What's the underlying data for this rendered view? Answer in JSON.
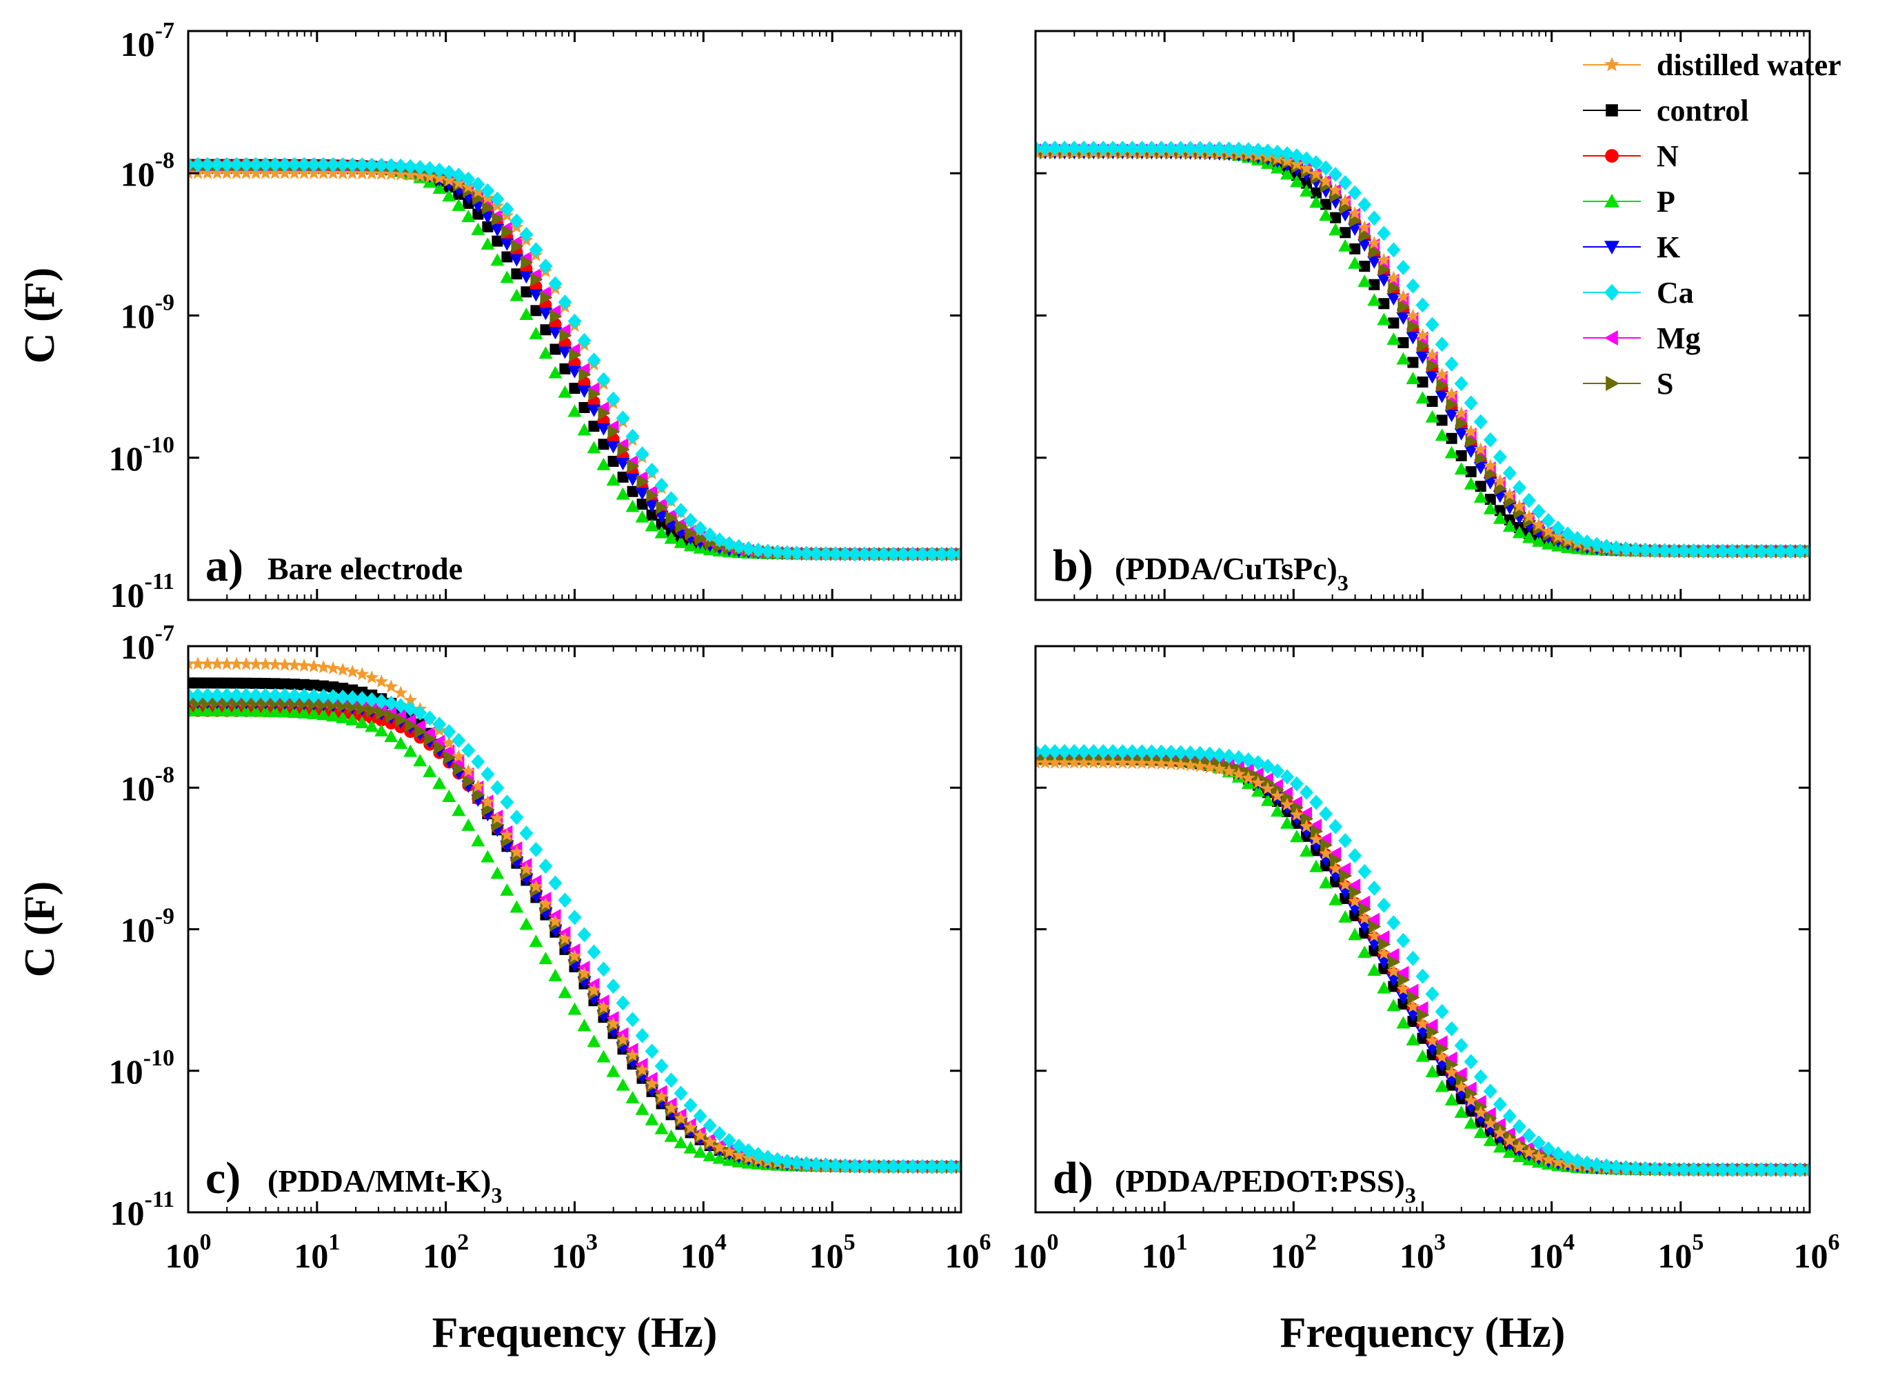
{
  "chart_data": {
    "type": "scatter",
    "layout": "2x2 grid",
    "xlabel": "Frequency (Hz)",
    "ylabel": "C (F)",
    "xscale": "log",
    "yscale": "log",
    "xlim": [
      1,
      1000000
    ],
    "ylim": [
      1e-11,
      1e-07
    ],
    "x_tick_labels": [
      "10^0",
      "10^1",
      "10^2",
      "10^3",
      "10^4",
      "10^5",
      "10^6"
    ],
    "y_tick_labels": [
      "10^-11",
      "10^-10",
      "10^-9",
      "10^-8",
      "10^-7"
    ],
    "legend_placement": "top-right of panel b",
    "series": [
      {
        "name": "distilled water",
        "color": "#f39a2e",
        "marker": "star"
      },
      {
        "name": "control",
        "color": "#000000",
        "marker": "square"
      },
      {
        "name": "N",
        "color": "#ff0000",
        "marker": "circle"
      },
      {
        "name": "P",
        "color": "#00e000",
        "marker": "triangle-up"
      },
      {
        "name": "K",
        "color": "#0000ff",
        "marker": "triangle-down"
      },
      {
        "name": "Ca",
        "color": "#00e5ee",
        "marker": "diamond"
      },
      {
        "name": "Mg",
        "color": "#ff00ff",
        "marker": "triangle-left"
      },
      {
        "name": "S",
        "color": "#6b6b00",
        "marker": "triangle-right"
      }
    ],
    "panels": [
      {
        "letter": "a)",
        "label": "Bare electrode",
        "label_sub": "",
        "curve_params": {
          "C_low": 1.1e-08,
          "C_high": 2.1e-11,
          "f_c": 180,
          "slope": 1.0
        },
        "series_offsets": {
          "distilled water": {
            "C_low": 1e-08,
            "f_c": 300
          },
          "control": {
            "C_low": 1.15e-08,
            "f_c": 160
          },
          "N": {
            "C_low": 1.15e-08,
            "f_c": 200
          },
          "P": {
            "C_low": 1.15e-08,
            "f_c": 130
          },
          "K": {
            "C_low": 1.1e-08,
            "f_c": 190
          },
          "Ca": {
            "C_low": 1.15e-08,
            "f_c": 290
          },
          "Mg": {
            "C_low": 1.1e-08,
            "f_c": 230
          },
          "S": {
            "C_low": 1.1e-08,
            "f_c": 220
          }
        }
      },
      {
        "letter": "b)",
        "label": "(PDDA/CuTsPc)",
        "label_sub": "3",
        "curve_params": {
          "C_low": 1.4e-08,
          "C_high": 2.2e-11,
          "f_c": 200,
          "slope": 1.0
        },
        "series_offsets": {
          "distilled water": {
            "C_low": 1.4e-08,
            "f_c": 230
          },
          "control": {
            "C_low": 1.45e-08,
            "f_c": 150
          },
          "N": {
            "C_low": 1.45e-08,
            "f_c": 200
          },
          "P": {
            "C_low": 1.45e-08,
            "f_c": 130
          },
          "K": {
            "C_low": 1.4e-08,
            "f_c": 190
          },
          "Ca": {
            "C_low": 1.5e-08,
            "f_c": 290
          },
          "Mg": {
            "C_low": 1.45e-08,
            "f_c": 220
          },
          "S": {
            "C_low": 1.4e-08,
            "f_c": 210
          }
        }
      },
      {
        "letter": "c)",
        "label": "(PDDA/MMt-K)",
        "label_sub": "3",
        "curve_params": {
          "C_low": 4e-08,
          "C_high": 2.1e-11,
          "f_c": 70,
          "slope": 0.85
        },
        "series_offsets": {
          "distilled water": {
            "C_low": 7.5e-08,
            "f_c": 60
          },
          "control": {
            "C_low": 5.5e-08,
            "f_c": 65
          },
          "N": {
            "C_low": 3.5e-08,
            "f_c": 90
          },
          "P": {
            "C_low": 3.5e-08,
            "f_c": 55
          },
          "K": {
            "C_low": 4e-08,
            "f_c": 80
          },
          "Ca": {
            "C_low": 4.5e-08,
            "f_c": 120
          },
          "Mg": {
            "C_low": 4.2e-08,
            "f_c": 90
          },
          "S": {
            "C_low": 4e-08,
            "f_c": 85
          }
        }
      },
      {
        "letter": "d)",
        "label": "(PDDA/PEDOT:PSS)",
        "label_sub": "3",
        "curve_params": {
          "C_low": 1.6e-08,
          "C_high": 2e-11,
          "f_c": 80,
          "slope": 0.9
        },
        "series_offsets": {
          "distilled water": {
            "C_low": 1.5e-08,
            "f_c": 90
          },
          "control": {
            "C_low": 1.6e-08,
            "f_c": 75
          },
          "N": {
            "C_low": 1.6e-08,
            "f_c": 85
          },
          "P": {
            "C_low": 1.7e-08,
            "f_c": 60
          },
          "K": {
            "C_low": 1.6e-08,
            "f_c": 80
          },
          "Ca": {
            "C_low": 1.8e-08,
            "f_c": 130
          },
          "Mg": {
            "C_low": 1.65e-08,
            "f_c": 100
          },
          "S": {
            "C_low": 1.6e-08,
            "f_c": 95
          }
        }
      }
    ]
  }
}
